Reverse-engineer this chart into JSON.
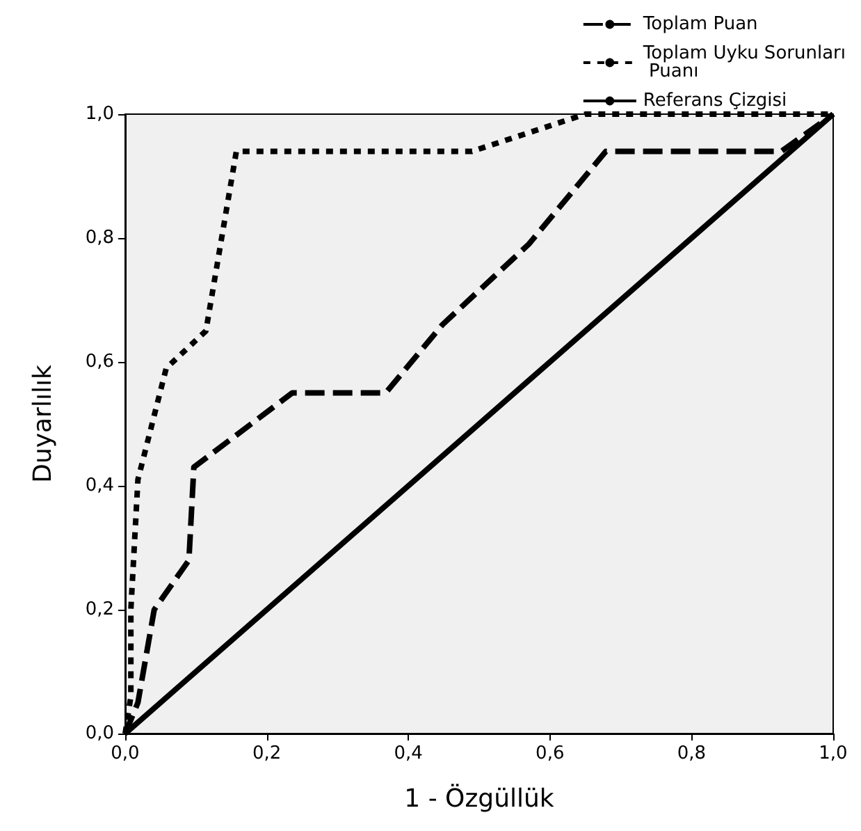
{
  "chart_data": {
    "type": "line",
    "xlabel": "1 - Özgüllük",
    "ylabel": "Duyarlılık",
    "xlim": [
      0,
      1
    ],
    "ylim": [
      0,
      1
    ],
    "xticks": [
      {
        "value": 0,
        "label": "0,0"
      },
      {
        "value": 0.2,
        "label": "0,2"
      },
      {
        "value": 0.4,
        "label": "0,4"
      },
      {
        "value": 0.6,
        "label": "0,6"
      },
      {
        "value": 0.8,
        "label": "0,8"
      },
      {
        "value": 1,
        "label": "1,0"
      }
    ],
    "yticks": [
      {
        "value": 0,
        "label": "0,0"
      },
      {
        "value": 0.2,
        "label": "0,2"
      },
      {
        "value": 0.4,
        "label": "0,4"
      },
      {
        "value": 0.6,
        "label": "0,6"
      },
      {
        "value": 0.8,
        "label": "0,8"
      },
      {
        "value": 1,
        "label": "1,0"
      }
    ],
    "grid": false,
    "legend": "top right",
    "marker": "none",
    "series": [
      {
        "name": "Toplam Puan",
        "color": "#000000",
        "line_style": "dashed",
        "x": [
          0,
          0.018,
          0.041,
          0.09,
          0.097,
          0.236,
          0.368,
          0.448,
          0.57,
          0.679,
          0.927,
          1
        ],
        "values": [
          0,
          0.05,
          0.2,
          0.28,
          0.43,
          0.55,
          0.55,
          0.66,
          0.79,
          0.94,
          0.94,
          1
        ]
      },
      {
        "name": "Toplam Uyku Sorunları Puanı",
        "color": "#000000",
        "line_style": "dotted",
        "x": [
          0,
          0.008,
          0.008,
          0.018,
          0.058,
          0.114,
          0.157,
          0.49,
          0.65,
          1
        ],
        "values": [
          0,
          0.06,
          0.2,
          0.41,
          0.59,
          0.65,
          0.94,
          0.94,
          1,
          1
        ]
      },
      {
        "name": "Referans Çizgisi",
        "color": "#000000",
        "line_style": "solid",
        "x": [
          0,
          1
        ],
        "values": [
          0,
          1
        ]
      }
    ]
  }
}
